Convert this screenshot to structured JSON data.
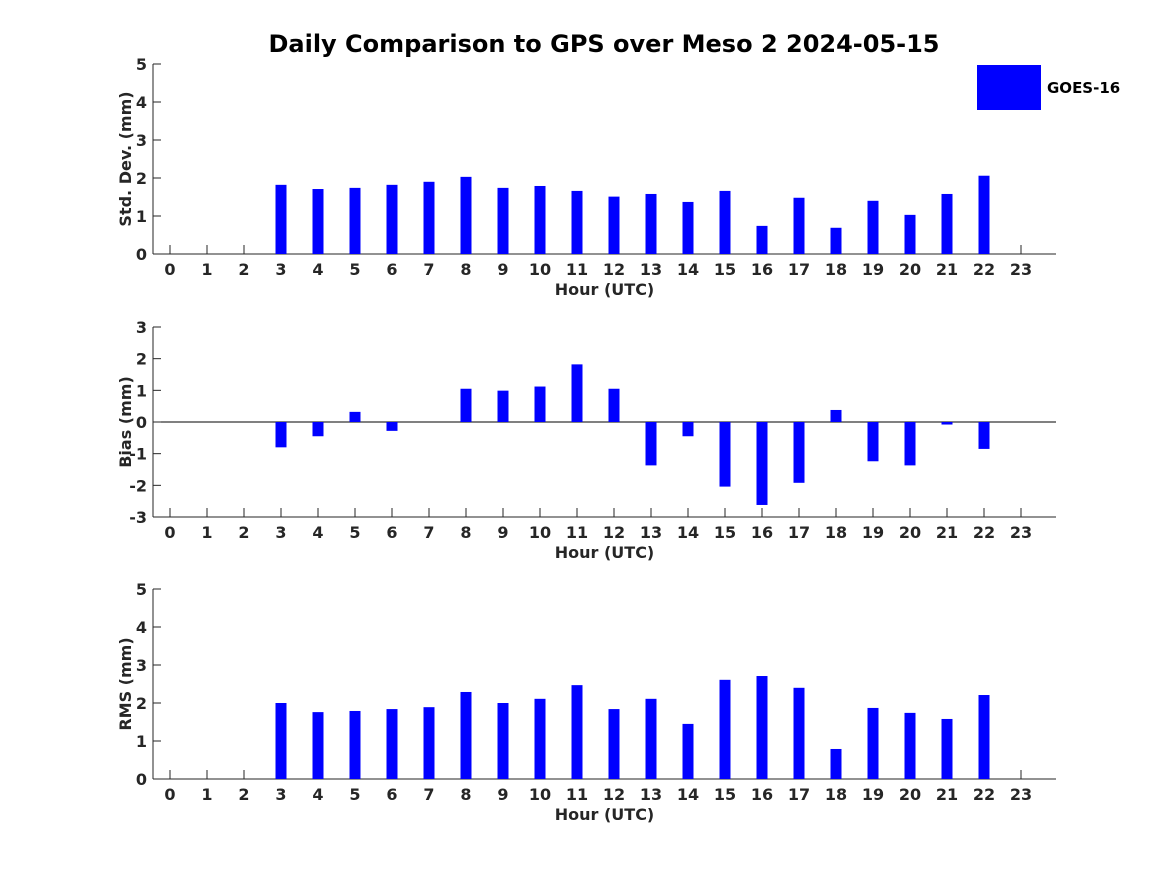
{
  "colors": {
    "bar": "#0000ff",
    "axis": "#262626",
    "background": "#ffffff"
  },
  "chart_data": {
    "type": "bar",
    "title": "Daily Comparison to GPS over Meso 2 2024-05-15",
    "legend": {
      "position": "top-right",
      "entries": [
        "GOES-16"
      ]
    },
    "categories": [
      0,
      1,
      2,
      3,
      4,
      5,
      6,
      7,
      8,
      9,
      10,
      11,
      12,
      13,
      14,
      15,
      16,
      17,
      18,
      19,
      20,
      21,
      22,
      23
    ],
    "panels": [
      {
        "id": "std",
        "ylabel": "Std. Dev. (mm)",
        "xlabel": "Hour (UTC)",
        "ylim": [
          0,
          5
        ],
        "yticks": [
          0,
          1,
          2,
          3,
          4,
          5
        ],
        "zero_line": false,
        "series": [
          {
            "name": "GOES-16",
            "values": [
              null,
              null,
              null,
              1.82,
              1.71,
              1.74,
              1.82,
              1.9,
              2.03,
              1.74,
              1.79,
              1.66,
              1.51,
              1.58,
              1.37,
              1.66,
              0.74,
              1.48,
              0.69,
              1.4,
              1.03,
              1.58,
              2.06,
              null
            ]
          }
        ]
      },
      {
        "id": "bias",
        "ylabel": "Bias (mm)",
        "xlabel": "Hour (UTC)",
        "ylim": [
          -3,
          3
        ],
        "yticks": [
          -3,
          -2,
          -1,
          0,
          1,
          2,
          3
        ],
        "zero_line": true,
        "series": [
          {
            "name": "GOES-16",
            "values": [
              null,
              null,
              null,
              -0.8,
              -0.45,
              0.32,
              -0.28,
              null,
              1.05,
              0.99,
              1.12,
              1.82,
              1.05,
              -1.37,
              -0.45,
              -2.04,
              -2.62,
              -1.92,
              0.38,
              -1.24,
              -1.37,
              -0.08,
              -0.85,
              null
            ]
          }
        ]
      },
      {
        "id": "rms",
        "ylabel": "RMS (mm)",
        "xlabel": "Hour (UTC)",
        "ylim": [
          0,
          5
        ],
        "yticks": [
          0,
          1,
          2,
          3,
          4,
          5
        ],
        "zero_line": false,
        "series": [
          {
            "name": "GOES-16",
            "values": [
              null,
              null,
              null,
              2.0,
              1.76,
              1.79,
              1.84,
              1.89,
              2.29,
              2.0,
              2.11,
              2.47,
              1.84,
              2.11,
              1.45,
              2.61,
              2.71,
              2.4,
              0.79,
              1.87,
              1.74,
              1.58,
              2.21,
              null
            ]
          }
        ]
      }
    ]
  }
}
